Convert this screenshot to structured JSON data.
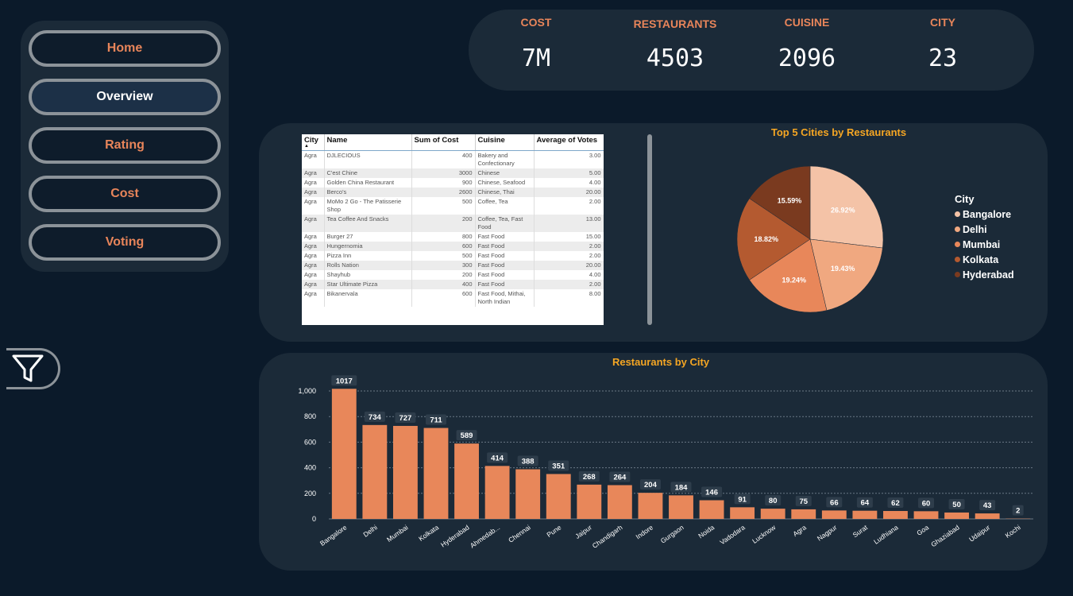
{
  "nav": {
    "items": [
      {
        "label": "Home",
        "active": false
      },
      {
        "label": "Overview",
        "active": true
      },
      {
        "label": "Rating",
        "active": false
      },
      {
        "label": "Cost",
        "active": false
      },
      {
        "label": "Voting",
        "active": false
      }
    ]
  },
  "kpis": [
    {
      "label": "COST",
      "value": "7M"
    },
    {
      "label": "RESTAURANTS",
      "value": "4503"
    },
    {
      "label": "CUISINE",
      "value": "2096"
    },
    {
      "label": "CITY",
      "value": "23"
    }
  ],
  "table": {
    "columns": [
      "City",
      "Name",
      "Sum of Cost",
      "Cuisine",
      "Average of Votes"
    ],
    "rows": [
      [
        "Agra",
        "DJLECIOUS",
        "400",
        "Bakery and Confectionary",
        "3.00"
      ],
      [
        "Agra",
        "C'est Chine",
        "3000",
        "Chinese",
        "5.00"
      ],
      [
        "Agra",
        "Golden China Restaurant",
        "900",
        "Chinese, Seafood",
        "4.00"
      ],
      [
        "Agra",
        "Berco's",
        "2600",
        "Chinese, Thai",
        "20.00"
      ],
      [
        "Agra",
        "MoMo 2 Go - The Patisserie Shop",
        "500",
        "Coffee, Tea",
        "2.00"
      ],
      [
        "Agra",
        "Tea Coffee And Snacks",
        "200",
        "Coffee, Tea, Fast Food",
        "13.00"
      ],
      [
        "Agra",
        "Burger 27",
        "800",
        "Fast Food",
        "15.00"
      ],
      [
        "Agra",
        "Hungernomia",
        "600",
        "Fast Food",
        "2.00"
      ],
      [
        "Agra",
        "Pizza Inn",
        "500",
        "Fast Food",
        "2.00"
      ],
      [
        "Agra",
        "Rolls Nation",
        "300",
        "Fast Food",
        "20.00"
      ],
      [
        "Agra",
        "Shayhub",
        "200",
        "Fast Food",
        "4.00"
      ],
      [
        "Agra",
        "Star Ultimate Pizza",
        "400",
        "Fast Food",
        "2.00"
      ],
      [
        "Agra",
        "Bikanervala",
        "600",
        "Fast Food, Mithai, North Indian",
        "8.00"
      ]
    ]
  },
  "chart_data": [
    {
      "type": "pie",
      "title": "Top 5 Cities by Restaurants",
      "legend_title": "City",
      "legend_position": "right",
      "slices": [
        {
          "label": "Bangalore",
          "value": 26.92,
          "text": "26.92%",
          "color": "#f4c3a7"
        },
        {
          "label": "Delhi",
          "value": 19.43,
          "text": "19.43%",
          "color": "#f0a880"
        },
        {
          "label": "Mumbai",
          "value": 19.24,
          "text": "19.24%",
          "color": "#e8875a"
        },
        {
          "label": "Kolkata",
          "value": 18.82,
          "text": "18.82%",
          "color": "#b45a30"
        },
        {
          "label": "Hyderabad",
          "value": 15.59,
          "text": "15.59%",
          "color": "#7a3a1f"
        }
      ]
    },
    {
      "type": "bar",
      "title": "Restaurants by City",
      "categories": [
        "Bangalore",
        "Delhi",
        "Mumbai",
        "Kolkata",
        "Hyderabad",
        "Ahmedab...",
        "Chennai",
        "Pune",
        "Jaipur",
        "Chandigarh",
        "Indore",
        "Gurgaon",
        "Noida",
        "Vadodara",
        "Lucknow",
        "Agra",
        "Nagpur",
        "Surat",
        "Ludhiana",
        "Goa",
        "Ghaziabad",
        "Udaipur",
        "Kochi"
      ],
      "values": [
        1017,
        734,
        727,
        711,
        589,
        414,
        388,
        351,
        268,
        264,
        204,
        184,
        146,
        91,
        80,
        75,
        66,
        64,
        62,
        60,
        50,
        43,
        2
      ],
      "yticks": [
        "0",
        "200",
        "400",
        "600",
        "800",
        "1,000"
      ],
      "ylim": [
        0,
        1000
      ],
      "grid": true,
      "bar_color": "#e8875a"
    }
  ]
}
